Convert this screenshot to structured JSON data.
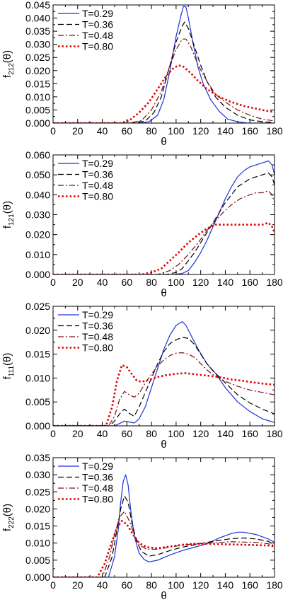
{
  "chart_data": [
    {
      "type": "line",
      "ylabel": "f",
      "ylabel_sub": "212",
      "ylabel_tail": "(θ)",
      "xlabel": "θ",
      "xlim": [
        0,
        180
      ],
      "ylim": [
        0,
        0.045
      ],
      "xticks": [
        "0",
        "20",
        "40",
        "60",
        "80",
        "100",
        "120",
        "140",
        "160",
        "180"
      ],
      "yticks": [
        "0.000",
        "0.005",
        "0.010",
        "0.015",
        "0.020",
        "0.025",
        "0.030",
        "0.035",
        "0.040",
        "0.045"
      ],
      "legend_position": "top-left",
      "series": [
        {
          "name": "T=0.29",
          "x": [
            0,
            70,
            78,
            85,
            90,
            95,
            100,
            104,
            106,
            108,
            110,
            114,
            118,
            122,
            128,
            135,
            142,
            150,
            158,
            180
          ],
          "y": [
            0,
            0,
            0.0005,
            0.003,
            0.009,
            0.02,
            0.033,
            0.041,
            0.0445,
            0.0443,
            0.04,
            0.03,
            0.021,
            0.015,
            0.009,
            0.0045,
            0.0015,
            0.0005,
            0,
            0
          ]
        },
        {
          "name": "T=0.36",
          "x": [
            0,
            65,
            75,
            82,
            88,
            95,
            100,
            105,
            107,
            110,
            115,
            120,
            125,
            132,
            140,
            150,
            160,
            170,
            180
          ],
          "y": [
            0,
            0,
            0.0008,
            0.004,
            0.01,
            0.022,
            0.031,
            0.037,
            0.0385,
            0.036,
            0.029,
            0.022,
            0.016,
            0.01,
            0.006,
            0.003,
            0.0012,
            0.0005,
            0.0002
          ]
        },
        {
          "name": "T=0.48",
          "x": [
            0,
            62,
            72,
            80,
            88,
            95,
            100,
            105,
            108,
            112,
            118,
            125,
            132,
            140,
            150,
            160,
            170,
            180
          ],
          "y": [
            0,
            0,
            0.001,
            0.005,
            0.012,
            0.022,
            0.028,
            0.032,
            0.032,
            0.029,
            0.022,
            0.016,
            0.011,
            0.008,
            0.005,
            0.003,
            0.0015,
            0.0008
          ]
        },
        {
          "name": "T=0.80",
          "x": [
            0,
            55,
            62,
            70,
            78,
            85,
            92,
            98,
            102,
            106,
            112,
            118,
            125,
            135,
            145,
            155,
            165,
            172,
            180
          ],
          "y": [
            0,
            0,
            0.001,
            0.004,
            0.008,
            0.013,
            0.018,
            0.021,
            0.022,
            0.0215,
            0.019,
            0.016,
            0.013,
            0.01,
            0.008,
            0.0065,
            0.0055,
            0.0048,
            0.0042
          ]
        }
      ]
    },
    {
      "type": "line",
      "ylabel": "f",
      "ylabel_sub": "121",
      "ylabel_tail": "(θ)",
      "xlabel": "θ",
      "xlim": [
        0,
        180
      ],
      "ylim": [
        0,
        0.06
      ],
      "xticks": [
        "0",
        "20",
        "40",
        "60",
        "80",
        "100",
        "120",
        "140",
        "160",
        "180"
      ],
      "yticks": [
        "0.000",
        "0.010",
        "0.020",
        "0.030",
        "0.040",
        "0.050",
        "0.060"
      ],
      "legend_position": "top-left",
      "series": [
        {
          "name": "T=0.29",
          "x": [
            0,
            98,
            105,
            110,
            115,
            120,
            125,
            130,
            135,
            140,
            145,
            150,
            155,
            160,
            165,
            170,
            175,
            178,
            180
          ],
          "y": [
            0,
            0,
            0.0005,
            0.002,
            0.006,
            0.011,
            0.017,
            0.024,
            0.031,
            0.038,
            0.044,
            0.049,
            0.052,
            0.054,
            0.055,
            0.056,
            0.057,
            0.055,
            0.05
          ]
        },
        {
          "name": "T=0.36",
          "x": [
            0,
            92,
            100,
            105,
            110,
            115,
            120,
            125,
            130,
            135,
            140,
            145,
            150,
            155,
            160,
            165,
            170,
            175,
            178,
            180
          ],
          "y": [
            0,
            0,
            0.001,
            0.003,
            0.007,
            0.011,
            0.016,
            0.021,
            0.026,
            0.031,
            0.036,
            0.04,
            0.044,
            0.046,
            0.048,
            0.049,
            0.05,
            0.051,
            0.049,
            0.045
          ]
        },
        {
          "name": "T=0.48",
          "x": [
            0,
            85,
            95,
            102,
            110,
            118,
            125,
            132,
            138,
            145,
            152,
            160,
            165,
            170,
            175,
            178,
            180
          ],
          "y": [
            0,
            0,
            0.002,
            0.005,
            0.01,
            0.016,
            0.022,
            0.027,
            0.031,
            0.035,
            0.038,
            0.04,
            0.041,
            0.041,
            0.042,
            0.04,
            0.036
          ]
        },
        {
          "name": "T=0.80",
          "x": [
            0,
            72,
            80,
            88,
            95,
            102,
            110,
            118,
            125,
            132,
            140,
            150,
            160,
            170,
            175,
            178,
            180
          ],
          "y": [
            0,
            0,
            0.001,
            0.003,
            0.007,
            0.011,
            0.016,
            0.02,
            0.023,
            0.025,
            0.025,
            0.025,
            0.025,
            0.025,
            0.026,
            0.024,
            0.021
          ]
        }
      ]
    },
    {
      "type": "line",
      "ylabel": "f",
      "ylabel_sub": "111",
      "ylabel_tail": "(θ)",
      "xlabel": "θ",
      "xlim": [
        0,
        180
      ],
      "ylim": [
        0,
        0.025
      ],
      "xticks": [
        "0",
        "20",
        "40",
        "60",
        "80",
        "100",
        "120",
        "140",
        "160",
        "180"
      ],
      "yticks": [
        "0.000",
        "0.005",
        "0.010",
        "0.015",
        "0.020",
        "0.025"
      ],
      "legend_position": "top-left",
      "series": [
        {
          "name": "T=0.29",
          "x": [
            0,
            50,
            55,
            58,
            62,
            66,
            70,
            75,
            80,
            85,
            90,
            95,
            100,
            105,
            108,
            112,
            118,
            125,
            132,
            140,
            150,
            160,
            170,
            180
          ],
          "y": [
            0,
            0,
            0.0006,
            0.001,
            0.0008,
            0.0006,
            0.0015,
            0.004,
            0.008,
            0.012,
            0.016,
            0.019,
            0.021,
            0.0218,
            0.021,
            0.019,
            0.016,
            0.013,
            0.011,
            0.008,
            0.005,
            0.003,
            0.0015,
            0.0007
          ]
        },
        {
          "name": "T=0.36",
          "x": [
            0,
            46,
            50,
            55,
            58,
            62,
            66,
            70,
            75,
            80,
            85,
            90,
            95,
            100,
            105,
            110,
            115,
            120,
            125,
            130,
            140,
            150,
            160,
            170,
            180
          ],
          "y": [
            0,
            0,
            0.001,
            0.0028,
            0.0035,
            0.0026,
            0.002,
            0.004,
            0.007,
            0.01,
            0.013,
            0.0155,
            0.0172,
            0.018,
            0.0185,
            0.0183,
            0.017,
            0.015,
            0.013,
            0.0115,
            0.009,
            0.0065,
            0.0048,
            0.0035,
            0.0025
          ]
        },
        {
          "name": "T=0.48",
          "x": [
            0,
            45,
            50,
            54,
            58,
            62,
            66,
            70,
            75,
            80,
            85,
            90,
            95,
            100,
            105,
            110,
            115,
            120,
            125,
            130,
            140,
            150,
            160,
            170,
            180
          ],
          "y": [
            0,
            0,
            0.002,
            0.0055,
            0.0072,
            0.0065,
            0.006,
            0.0068,
            0.009,
            0.0108,
            0.0125,
            0.0138,
            0.0147,
            0.0152,
            0.0153,
            0.015,
            0.0143,
            0.013,
            0.0117,
            0.0107,
            0.0093,
            0.0083,
            0.0075,
            0.007,
            0.0065
          ]
        },
        {
          "name": "T=0.80",
          "x": [
            0,
            43,
            48,
            52,
            56,
            60,
            64,
            68,
            72,
            78,
            85,
            92,
            100,
            108,
            115,
            125,
            135,
            145,
            155,
            165,
            172,
            180
          ],
          "y": [
            0,
            0,
            0.004,
            0.0095,
            0.0127,
            0.0123,
            0.0108,
            0.0095,
            0.0092,
            0.0096,
            0.0102,
            0.0106,
            0.0109,
            0.011,
            0.0108,
            0.0105,
            0.0102,
            0.0097,
            0.0094,
            0.009,
            0.0088,
            0.0086
          ]
        }
      ]
    },
    {
      "type": "line",
      "ylabel": "f",
      "ylabel_sub": "222",
      "ylabel_tail": "(θ)",
      "xlabel": "θ",
      "xlim": [
        0,
        180
      ],
      "ylim": [
        0,
        0.035
      ],
      "xticks": [
        "0",
        "20",
        "40",
        "60",
        "80",
        "100",
        "120",
        "140",
        "160",
        "180"
      ],
      "yticks": [
        "0.000",
        "0.005",
        "0.010",
        "0.015",
        "0.020",
        "0.025",
        "0.030",
        "0.035"
      ],
      "legend_position": "top-left",
      "series": [
        {
          "name": "T=0.29",
          "x": [
            0,
            45,
            50,
            53,
            55,
            57,
            59,
            61,
            63,
            66,
            70,
            74,
            78,
            85,
            95,
            105,
            115,
            125,
            135,
            145,
            150,
            155,
            165,
            175,
            180
          ],
          "y": [
            0,
            0,
            0.006,
            0.014,
            0.022,
            0.028,
            0.03,
            0.027,
            0.02,
            0.012,
            0.007,
            0.0052,
            0.0045,
            0.005,
            0.0065,
            0.0078,
            0.0088,
            0.0098,
            0.0115,
            0.0128,
            0.0132,
            0.0132,
            0.0125,
            0.0112,
            0.0102
          ]
        },
        {
          "name": "T=0.36",
          "x": [
            0,
            42,
            48,
            52,
            55,
            58,
            61,
            64,
            68,
            72,
            78,
            85,
            95,
            105,
            115,
            125,
            135,
            145,
            155,
            165,
            175,
            180
          ],
          "y": [
            0,
            0,
            0.006,
            0.014,
            0.02,
            0.0238,
            0.022,
            0.016,
            0.0105,
            0.0075,
            0.0062,
            0.0066,
            0.0078,
            0.0088,
            0.0095,
            0.0102,
            0.0108,
            0.0113,
            0.0115,
            0.0112,
            0.0105,
            0.0095
          ]
        },
        {
          "name": "T=0.48",
          "x": [
            0,
            40,
            46,
            50,
            54,
            58,
            62,
            66,
            70,
            76,
            85,
            95,
            105,
            115,
            125,
            135,
            145,
            155,
            165,
            175,
            180
          ],
          "y": [
            0,
            0,
            0.006,
            0.0125,
            0.0175,
            0.0193,
            0.0165,
            0.0125,
            0.0095,
            0.0082,
            0.0082,
            0.0088,
            0.0094,
            0.0098,
            0.01,
            0.0102,
            0.0104,
            0.0103,
            0.0102,
            0.0098,
            0.0093
          ]
        },
        {
          "name": "T=0.80",
          "x": [
            0,
            36,
            42,
            47,
            52,
            56,
            60,
            65,
            70,
            76,
            85,
            95,
            105,
            115,
            125,
            135,
            145,
            155,
            165,
            175,
            180
          ],
          "y": [
            0,
            0,
            0.004,
            0.0095,
            0.0145,
            0.0165,
            0.0155,
            0.0125,
            0.01,
            0.0088,
            0.0085,
            0.009,
            0.0095,
            0.0098,
            0.0098,
            0.0097,
            0.0096,
            0.0095,
            0.0094,
            0.0093,
            0.009
          ]
        }
      ]
    }
  ],
  "styles": {
    "series_colors": [
      "#1f32d6",
      "#000000",
      "#7a1010",
      "#e00000"
    ],
    "axis_color": "#000000"
  }
}
